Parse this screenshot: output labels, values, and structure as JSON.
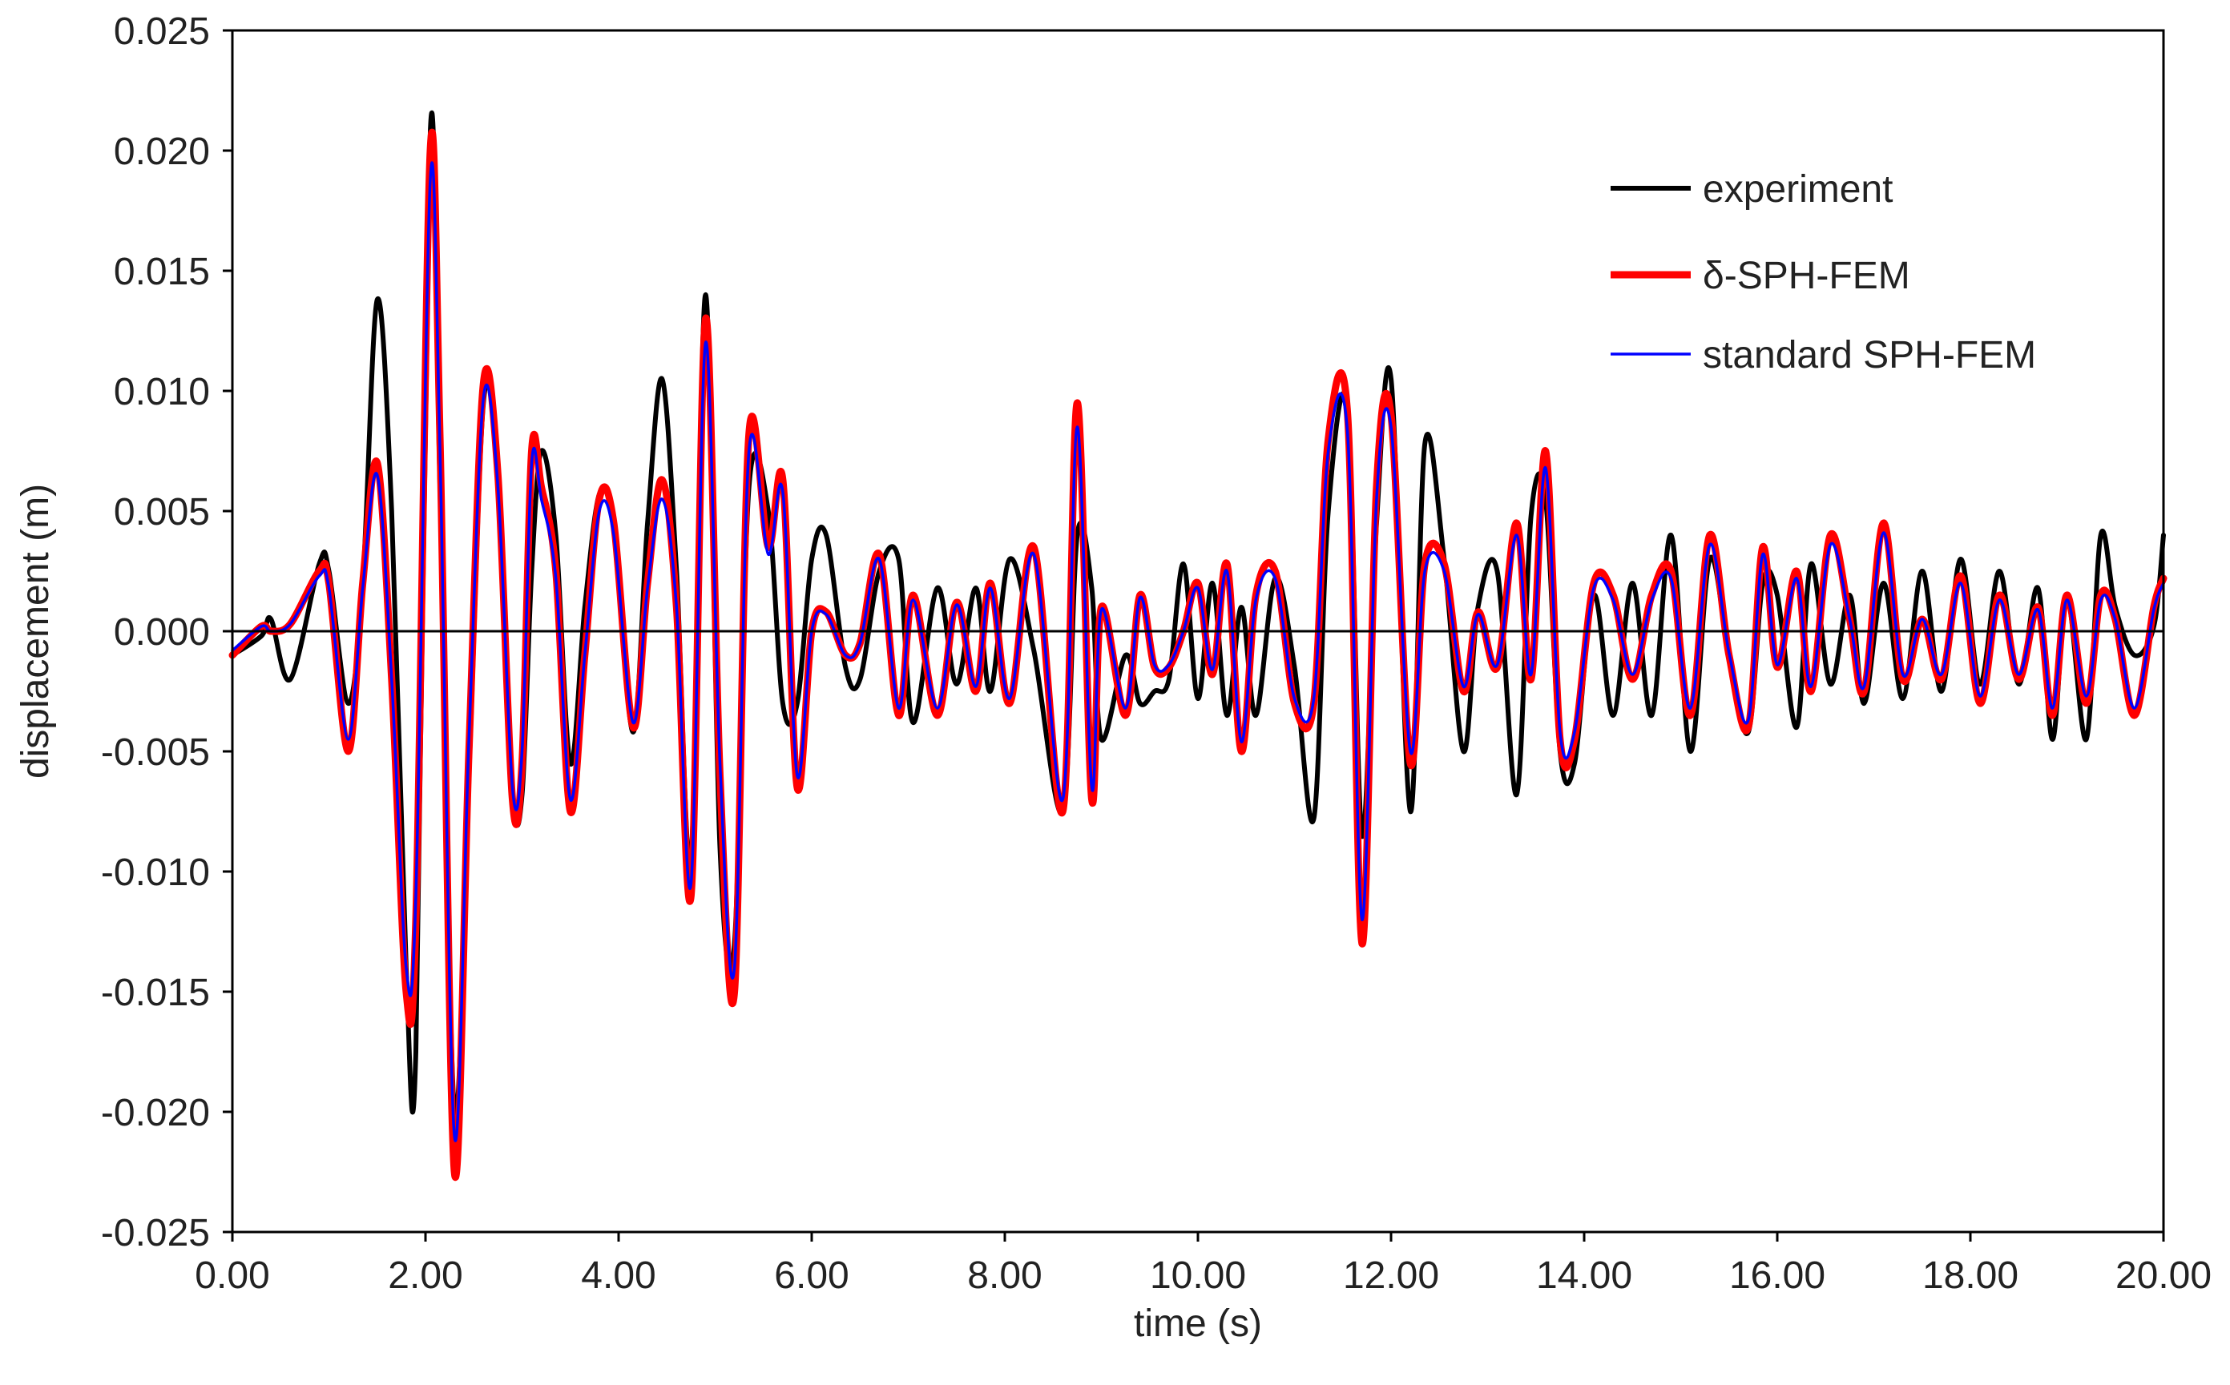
{
  "chart_data": {
    "type": "line",
    "title": "",
    "xlabel": "time (s)",
    "ylabel": "displacement (m)",
    "xlim": [
      0,
      20
    ],
    "ylim": [
      -0.025,
      0.025
    ],
    "x_ticks": [
      0,
      2,
      4,
      6,
      8,
      10,
      12,
      14,
      16,
      18,
      20
    ],
    "x_tick_labels": [
      "0.00",
      "2.00",
      "4.00",
      "6.00",
      "8.00",
      "10.00",
      "12.00",
      "14.00",
      "16.00",
      "18.00",
      "20.00"
    ],
    "y_ticks": [
      0.025,
      0.02,
      0.015,
      0.01,
      0.005,
      0,
      -0.005,
      -0.01,
      -0.015,
      -0.02,
      -0.025
    ],
    "y_tick_labels": [
      "0.025",
      "0.020",
      "0.015",
      "0.010",
      "0.005",
      "0.000",
      "-0.005",
      "-0.010",
      "-0.015",
      "-0.020",
      "-0.025"
    ],
    "grid": false,
    "legend_position": "top-right",
    "zero_line": true,
    "series": [
      {
        "name": "experiment",
        "color": "#000000",
        "x": [
          0,
          0.3,
          0.4,
          0.6,
          0.9,
          1.0,
          1.2,
          1.35,
          1.5,
          1.65,
          1.8,
          1.9,
          2.05,
          2.15,
          2.3,
          2.45,
          2.6,
          2.75,
          2.9,
          3.0,
          3.1,
          3.2,
          3.35,
          3.5,
          3.65,
          3.8,
          3.95,
          4.15,
          4.3,
          4.45,
          4.6,
          4.75,
          4.9,
          5.05,
          5.2,
          5.35,
          5.55,
          5.7,
          5.85,
          6.0,
          6.15,
          6.35,
          6.5,
          6.7,
          6.9,
          7.05,
          7.3,
          7.5,
          7.7,
          7.85,
          8.05,
          8.3,
          8.6,
          8.75,
          8.9,
          9.0,
          9.25,
          9.4,
          9.55,
          9.7,
          9.85,
          10.0,
          10.15,
          10.3,
          10.45,
          10.6,
          10.8,
          11.0,
          11.2,
          11.35,
          11.55,
          11.7,
          11.85,
          12.0,
          12.2,
          12.35,
          12.55,
          12.75,
          12.9,
          13.1,
          13.3,
          13.45,
          13.6,
          13.75,
          13.9,
          14.1,
          14.3,
          14.5,
          14.7,
          14.9,
          15.1,
          15.3,
          15.5,
          15.7,
          15.85,
          16.0,
          16.2,
          16.35,
          16.55,
          16.75,
          16.9,
          17.1,
          17.3,
          17.5,
          17.7,
          17.9,
          18.1,
          18.3,
          18.5,
          18.7,
          18.85,
          19.0,
          19.2,
          19.35,
          19.5,
          19.7,
          19.9,
          20.0
        ],
        "y": [
          -0.001,
          -0.0002,
          0.0005,
          -0.002,
          0.0028,
          0.0025,
          -0.003,
          0.002,
          0.0138,
          0.005,
          -0.014,
          -0.0175,
          0.0208,
          0.006,
          -0.02,
          -0.006,
          0.0095,
          0.007,
          -0.0065,
          -0.0068,
          0.0025,
          0.0075,
          0.004,
          -0.0055,
          0.001,
          0.0057,
          0.0045,
          -0.0042,
          0.0045,
          0.0105,
          0.0025,
          -0.0095,
          0.014,
          -0.009,
          -0.013,
          0.006,
          0.005,
          -0.003,
          -0.003,
          0.003,
          0.004,
          -0.0015,
          -0.002,
          0.0025,
          0.003,
          -0.0038,
          0.0018,
          -0.0022,
          0.0018,
          -0.0025,
          0.003,
          -0.0008,
          -0.0075,
          0.004,
          0.0018,
          -0.0045,
          -0.001,
          -0.003,
          -0.0025,
          -0.002,
          0.0028,
          -0.0028,
          0.002,
          -0.0035,
          0.001,
          -0.0035,
          0.0022,
          -0.0015,
          -0.0078,
          0.005,
          0.0092,
          -0.0085,
          0.0045,
          0.0105,
          -0.0075,
          0.0078,
          0.003,
          -0.005,
          0.001,
          0.0025,
          -0.0068,
          0.0048,
          0.0055,
          -0.005,
          -0.0055,
          0.0015,
          -0.0035,
          0.002,
          -0.0035,
          0.004,
          -0.005,
          0.003,
          -0.001,
          -0.0042,
          0.002,
          0.0015,
          -0.004,
          0.0028,
          -0.0022,
          0.0015,
          -0.003,
          0.002,
          -0.0028,
          0.0025,
          -0.0025,
          0.003,
          -0.0022,
          0.0025,
          -0.0022,
          0.0018,
          -0.0045,
          0.0015,
          -0.0045,
          0.004,
          0.001,
          -0.001,
          0.0002,
          0.004
        ]
      },
      {
        "name": "δ-SPH-FEM",
        "color": "#ff0000",
        "x": [
          0,
          0.3,
          0.4,
          0.6,
          0.9,
          1.0,
          1.2,
          1.35,
          1.5,
          1.65,
          1.8,
          1.9,
          2.05,
          2.15,
          2.3,
          2.45,
          2.6,
          2.75,
          2.9,
          3.0,
          3.1,
          3.2,
          3.35,
          3.5,
          3.65,
          3.8,
          3.95,
          4.15,
          4.3,
          4.45,
          4.6,
          4.75,
          4.9,
          5.05,
          5.2,
          5.35,
          5.55,
          5.7,
          5.85,
          6.0,
          6.15,
          6.35,
          6.5,
          6.7,
          6.9,
          7.05,
          7.3,
          7.5,
          7.7,
          7.85,
          8.05,
          8.3,
          8.6,
          8.75,
          8.9,
          9.0,
          9.25,
          9.4,
          9.55,
          9.7,
          9.85,
          10.0,
          10.15,
          10.3,
          10.45,
          10.6,
          10.8,
          11.0,
          11.2,
          11.35,
          11.55,
          11.7,
          11.85,
          12.0,
          12.2,
          12.35,
          12.55,
          12.75,
          12.9,
          13.1,
          13.3,
          13.45,
          13.6,
          13.75,
          13.9,
          14.1,
          14.3,
          14.5,
          14.7,
          14.9,
          15.1,
          15.3,
          15.5,
          15.7,
          15.85,
          16.0,
          16.2,
          16.35,
          16.55,
          16.75,
          16.9,
          17.1,
          17.3,
          17.5,
          17.7,
          17.9,
          18.1,
          18.3,
          18.5,
          18.7,
          18.85,
          19.0,
          19.2,
          19.35,
          19.5,
          19.7,
          19.9,
          20.0
        ],
        "y": [
          -0.001,
          0.0002,
          0.0,
          0.0003,
          0.0025,
          0.002,
          -0.005,
          0.002,
          0.007,
          -0.002,
          -0.015,
          -0.012,
          0.02,
          0.008,
          -0.0225,
          -0.005,
          0.0103,
          0.0065,
          -0.007,
          -0.0055,
          0.0075,
          0.006,
          0.0025,
          -0.0075,
          -0.001,
          0.0055,
          0.0045,
          -0.004,
          0.002,
          0.0063,
          0.001,
          -0.011,
          0.013,
          -0.006,
          -0.015,
          0.0082,
          0.0035,
          0.0063,
          -0.0065,
          0.0,
          0.0008,
          -0.001,
          -0.0005,
          0.0032,
          -0.0035,
          0.0015,
          -0.0035,
          0.0012,
          -0.0025,
          0.002,
          -0.003,
          0.0035,
          -0.0075,
          0.0095,
          -0.007,
          0.001,
          -0.0035,
          0.0015,
          -0.0015,
          -0.0015,
          0.0,
          0.002,
          -0.0018,
          0.0028,
          -0.005,
          0.0015,
          0.0025,
          -0.003,
          -0.003,
          0.008,
          0.009,
          -0.013,
          0.006,
          0.009,
          -0.0055,
          0.0028,
          0.0028,
          -0.0025,
          0.0008,
          -0.0015,
          0.0045,
          -0.002,
          0.0075,
          -0.0045,
          -0.0045,
          0.002,
          0.0015,
          -0.002,
          0.0015,
          0.0025,
          -0.0035,
          0.004,
          -0.001,
          -0.004,
          0.0035,
          -0.0015,
          0.0025,
          -0.0025,
          0.004,
          0.0005,
          -0.0025,
          0.0045,
          -0.002,
          0.0005,
          -0.002,
          0.0023,
          -0.003,
          0.0015,
          -0.002,
          0.001,
          -0.0035,
          0.0015,
          -0.003,
          0.0015,
          0.0005,
          -0.0035,
          0.001,
          0.0022
        ]
      },
      {
        "name": "standard SPH-FEM",
        "color": "#0000ff",
        "x": [
          0,
          0.3,
          0.4,
          0.6,
          0.9,
          1.0,
          1.2,
          1.35,
          1.5,
          1.65,
          1.8,
          1.9,
          2.05,
          2.15,
          2.3,
          2.45,
          2.6,
          2.75,
          2.9,
          3.0,
          3.1,
          3.2,
          3.35,
          3.5,
          3.65,
          3.8,
          3.95,
          4.15,
          4.3,
          4.45,
          4.6,
          4.75,
          4.9,
          5.05,
          5.2,
          5.35,
          5.55,
          5.7,
          5.85,
          6.0,
          6.15,
          6.35,
          6.5,
          6.7,
          6.9,
          7.05,
          7.3,
          7.5,
          7.7,
          7.85,
          8.05,
          8.3,
          8.6,
          8.75,
          8.9,
          9.0,
          9.25,
          9.4,
          9.55,
          9.7,
          9.85,
          10.0,
          10.15,
          10.3,
          10.45,
          10.6,
          10.8,
          11.0,
          11.2,
          11.35,
          11.55,
          11.7,
          11.85,
          12.0,
          12.2,
          12.35,
          12.55,
          12.75,
          12.9,
          13.1,
          13.3,
          13.45,
          13.6,
          13.75,
          13.9,
          14.1,
          14.3,
          14.5,
          14.7,
          14.9,
          15.1,
          15.3,
          15.5,
          15.7,
          15.85,
          16.0,
          16.2,
          16.35,
          16.55,
          16.75,
          16.9,
          17.1,
          17.3,
          17.5,
          17.7,
          17.9,
          18.1,
          18.3,
          18.5,
          18.7,
          18.85,
          19.0,
          19.2,
          19.35,
          19.5,
          19.7,
          19.9,
          20.0
        ],
        "y": [
          -0.0008,
          0.0002,
          0.0,
          0.0003,
          0.0023,
          0.0018,
          -0.0045,
          0.0018,
          0.0065,
          -0.002,
          -0.014,
          -0.011,
          0.0188,
          0.0075,
          -0.021,
          -0.0045,
          0.0097,
          0.006,
          -0.0065,
          -0.005,
          0.007,
          0.0055,
          0.0022,
          -0.007,
          -0.001,
          0.005,
          0.004,
          -0.0038,
          0.0018,
          0.0055,
          0.001,
          -0.0105,
          0.012,
          -0.0055,
          -0.014,
          0.0075,
          0.0032,
          0.0058,
          -0.006,
          0.0,
          0.0007,
          -0.001,
          -0.0005,
          0.003,
          -0.0032,
          0.0013,
          -0.0032,
          0.0011,
          -0.0023,
          0.0018,
          -0.0028,
          0.0032,
          -0.007,
          0.0085,
          -0.0065,
          0.0009,
          -0.0032,
          0.0014,
          -0.0014,
          -0.0014,
          0.0,
          0.0018,
          -0.0016,
          0.0025,
          -0.0046,
          0.0013,
          0.0022,
          -0.0028,
          -0.0028,
          0.0075,
          0.0082,
          -0.012,
          0.0055,
          0.0085,
          -0.005,
          0.0025,
          0.0025,
          -0.0023,
          0.0007,
          -0.0014,
          0.004,
          -0.0018,
          0.0068,
          -0.0042,
          -0.0042,
          0.0018,
          0.0013,
          -0.0018,
          0.0013,
          0.0022,
          -0.0032,
          0.0036,
          -0.0009,
          -0.0037,
          0.0032,
          -0.0014,
          0.0022,
          -0.0023,
          0.0036,
          0.0005,
          -0.0023,
          0.0041,
          -0.0018,
          0.0005,
          -0.0018,
          0.002,
          -0.0027,
          0.0013,
          -0.0018,
          0.0009,
          -0.0032,
          0.0013,
          -0.0027,
          0.0013,
          0.0005,
          -0.0032,
          0.0009,
          0.002
        ]
      }
    ]
  }
}
